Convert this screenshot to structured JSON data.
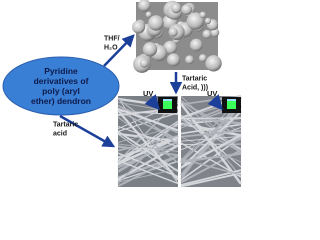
{
  "nodes": [
    {
      "label": "Pyridine derivatives of poly (aryl ether) dendron"
    }
  ],
  "edges": [
    {
      "label": "THF/ H₂O"
    },
    {
      "label": "Tartaric Acid, )))"
    },
    {
      "label": "Tartaric acid"
    }
  ],
  "panels": [
    {
      "label": "UV"
    },
    {
      "label": "UV"
    }
  ]
}
